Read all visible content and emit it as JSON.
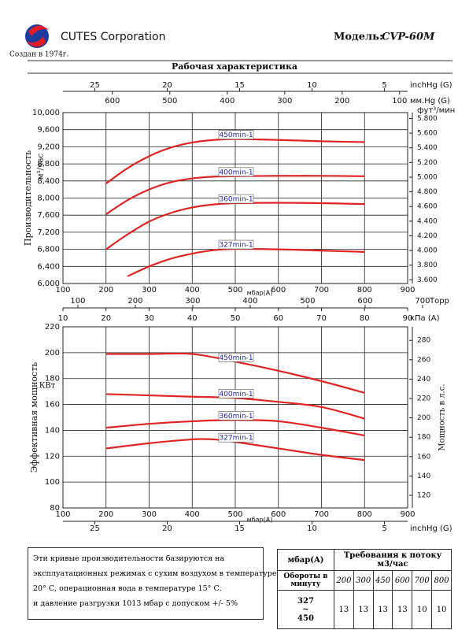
{
  "header": {
    "company": "CUTES Corporation",
    "founded": "Создан в 1974г.",
    "model_label": "Модель:",
    "model": "CVP-60M"
  },
  "section_title": "Рабочая характеристика",
  "chart_data": [
    {
      "type": "line",
      "x_label": "мбар(A)",
      "y_label": "Производительность",
      "y_unit": "м³/час",
      "y2_label": "фут³/мин",
      "xlim": [
        100,
        900
      ],
      "xticks": [
        100,
        200,
        300,
        400,
        500,
        600,
        700,
        800,
        900
      ],
      "ylim": [
        6000,
        10000
      ],
      "yticks": [
        {
          "value": 6000,
          "label": "6,000"
        },
        {
          "value": 6400,
          "label": "6,400"
        },
        {
          "value": 6800,
          "label": "6,800"
        },
        {
          "value": 7200,
          "label": "7,200"
        },
        {
          "value": 7600,
          "label": "7,600"
        },
        {
          "value": 8000,
          "label": "8,000"
        },
        {
          "value": 8400,
          "label": "8,400"
        },
        {
          "value": 8800,
          "label": "8,800"
        },
        {
          "value": 9200,
          "label": "9,200"
        },
        {
          "value": 9600,
          "label": "9,600"
        },
        {
          "value": 10000,
          "label": "10,000"
        }
      ],
      "y2lim": [
        3550,
        5880
      ],
      "y2ticks": [
        {
          "value": 3600,
          "label": "3.600"
        },
        {
          "value": 3800,
          "label": "3.800"
        },
        {
          "value": 4000,
          "label": "4.000"
        },
        {
          "value": 4200,
          "label": "4.200"
        },
        {
          "value": 4400,
          "label": "4.400"
        },
        {
          "value": 4600,
          "label": "4.600"
        },
        {
          "value": 4800,
          "label": "4.800"
        },
        {
          "value": 5000,
          "label": "5.000"
        },
        {
          "value": 5200,
          "label": "5.200"
        },
        {
          "value": 5400,
          "label": "5.400"
        },
        {
          "value": 5600,
          "label": "5.600"
        },
        {
          "value": 5800,
          "label": "5.800"
        }
      ],
      "grid": true,
      "series": [
        {
          "name": "450min-1",
          "color": "#e02424",
          "x": [
            200,
            250,
            300,
            350,
            400,
            450,
            500,
            600,
            700,
            800
          ],
          "values": [
            8340,
            8700,
            8980,
            9180,
            9300,
            9360,
            9380,
            9360,
            9330,
            9310
          ]
        },
        {
          "name": "400min-1",
          "color": "#e02424",
          "x": [
            200,
            250,
            300,
            350,
            400,
            450,
            500,
            600,
            700,
            800
          ],
          "values": [
            7620,
            7950,
            8200,
            8370,
            8460,
            8500,
            8510,
            8520,
            8520,
            8510
          ]
        },
        {
          "name": "360min-1",
          "color": "#e02424",
          "x": [
            200,
            250,
            300,
            350,
            400,
            450,
            500,
            600,
            700,
            800
          ],
          "values": [
            6800,
            7150,
            7450,
            7650,
            7780,
            7850,
            7880,
            7890,
            7880,
            7860
          ]
        },
        {
          "name": "327min-1",
          "color": "#e02424",
          "x": [
            250,
            300,
            350,
            400,
            450,
            500,
            600,
            700,
            800
          ],
          "values": [
            6170,
            6400,
            6580,
            6700,
            6780,
            6810,
            6800,
            6770,
            6740
          ]
        }
      ],
      "top_axes": [
        {
          "label": "inchHg (G)",
          "lim": [
            27.2,
            3.4
          ],
          "ticks": [
            25,
            20,
            15,
            10,
            5
          ]
        },
        {
          "label": "мм.Hg (G)",
          "lim": [
            686,
            86
          ],
          "ticks": [
            600,
            500,
            400,
            300,
            200,
            100
          ]
        }
      ],
      "bottom_axes": [
        {
          "label": "Торр",
          "lim": [
            74,
            674
          ],
          "ticks": [
            100,
            200,
            300,
            400,
            500,
            600,
            700
          ]
        },
        {
          "label": "кПа (А)",
          "lim": [
            10,
            90
          ],
          "ticks": [
            10,
            20,
            30,
            40,
            50,
            60,
            70,
            80,
            90
          ]
        }
      ]
    },
    {
      "type": "line",
      "x_label": "мбар(A)",
      "y_label": "Эффективная мощность",
      "y_unit": "КВт",
      "y2_label": "Мощность в л.с.",
      "xlim": [
        100,
        900
      ],
      "xticks": [
        100,
        200,
        300,
        400,
        500,
        600,
        700,
        800,
        900
      ],
      "ylim": [
        80,
        220
      ],
      "yticks": [
        80,
        100,
        120,
        140,
        160,
        180,
        200,
        220
      ],
      "y2lim": [
        107,
        294
      ],
      "y2ticks": [
        120,
        140,
        160,
        180,
        200,
        220,
        240,
        260,
        280
      ],
      "grid": true,
      "series": [
        {
          "name": "450min-1",
          "color": "#e02424",
          "x": [
            200,
            300,
            400,
            500,
            600,
            700,
            800
          ],
          "values": [
            199,
            199,
            199,
            193,
            186,
            178,
            169
          ]
        },
        {
          "name": "400min-1",
          "color": "#e02424",
          "x": [
            200,
            300,
            400,
            500,
            600,
            700,
            800
          ],
          "values": [
            168,
            167,
            166,
            165,
            162,
            158,
            149
          ]
        },
        {
          "name": "360min-1",
          "color": "#e02424",
          "x": [
            200,
            300,
            400,
            500,
            600,
            700,
            800
          ],
          "values": [
            142,
            145,
            147,
            148,
            147,
            142,
            136
          ]
        },
        {
          "name": "327min-1",
          "color": "#e02424",
          "x": [
            200,
            300,
            400,
            450,
            500,
            600,
            700,
            800
          ],
          "values": [
            126,
            130,
            133,
            133,
            131,
            126,
            121,
            117
          ]
        }
      ],
      "top_axes": [],
      "bottom_axes": [
        {
          "label": "inchHg (G)",
          "lim": [
            27.2,
            3.4
          ],
          "ticks": [
            25,
            20,
            15,
            10,
            5
          ]
        }
      ]
    }
  ],
  "note": {
    "lines": [
      "Эти кривые производительности базируются на",
      "эксплуатационных режимах с сухим воздухом в температуре",
      "20° С, операционная вода в температуре 15° С.",
      "и давление разгрузки 1013 мбар с допуском +/- 5%"
    ]
  },
  "table": {
    "pressure_label": "мбар(A)",
    "flow_label": "Требования к потоку м3/час",
    "speed_label": "Обороты в минуту",
    "columns": [
      200,
      300,
      450,
      600,
      700,
      800
    ],
    "speed_range": [
      "327",
      "~",
      "450"
    ],
    "values": [
      13,
      13,
      13,
      13,
      10,
      10
    ]
  }
}
